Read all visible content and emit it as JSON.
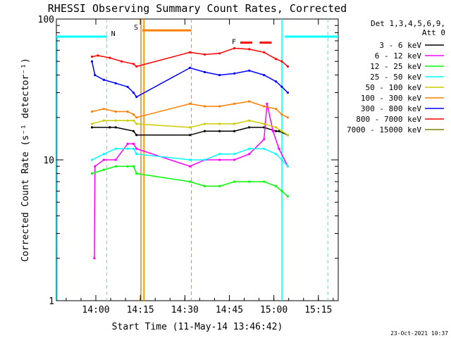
{
  "chart_data": {
    "type": "line",
    "title": "RHESSI Observing Summary Count Rates, Corrected",
    "xlabel": "Start Time (11-May-14 13:46:42)",
    "ylabel": "Corrected Count Rate (s⁻¹ detector⁻¹)",
    "x_unit": "minutes after 13:46:42",
    "xlim": [
      0,
      95
    ],
    "ylim": [
      1,
      100
    ],
    "yscale": "log",
    "x_ticks": [
      {
        "v": 13.3,
        "label": "14:00"
      },
      {
        "v": 28.3,
        "label": "14:15"
      },
      {
        "v": 43.3,
        "label": "14:30"
      },
      {
        "v": 58.3,
        "label": "14:45"
      },
      {
        "v": 73.3,
        "label": "15:00"
      },
      {
        "v": 88.3,
        "label": "15:15"
      }
    ],
    "y_ticks": [
      {
        "v": 1,
        "label": "1"
      },
      {
        "v": 10,
        "label": "10"
      },
      {
        "v": 100,
        "label": "100"
      }
    ],
    "legend_title": "Det 1,3,4,5,6,9,",
    "legend_subtitle": "Att 0",
    "legend_position": "right",
    "series": [
      {
        "name": "3 - 6 keV",
        "color": "#000000",
        "data": [
          [
            12,
            17
          ],
          [
            18,
            17
          ],
          [
            20,
            17
          ],
          [
            26,
            16
          ],
          [
            27,
            15
          ],
          [
            45,
            15
          ],
          [
            50,
            16
          ],
          [
            55,
            16
          ],
          [
            60,
            16
          ],
          [
            65,
            17
          ],
          [
            70,
            17
          ],
          [
            74,
            16
          ],
          [
            75,
            16
          ],
          [
            78,
            15
          ]
        ]
      },
      {
        "name": "6 - 12 keV",
        "color": "#ff00ff",
        "data": [
          [
            12.8,
            2
          ],
          [
            13,
            9
          ],
          [
            16,
            10
          ],
          [
            20,
            10
          ],
          [
            24,
            13
          ],
          [
            26,
            13
          ],
          [
            27,
            12
          ],
          [
            45,
            9
          ],
          [
            50,
            10
          ],
          [
            55,
            10
          ],
          [
            60,
            10
          ],
          [
            65,
            11
          ],
          [
            70,
            14
          ],
          [
            71,
            25
          ],
          [
            73,
            16
          ],
          [
            75,
            12
          ],
          [
            78,
            9
          ]
        ]
      },
      {
        "name": "12 - 25 keV",
        "color": "#00ff00",
        "data": [
          [
            12,
            8
          ],
          [
            16,
            8.5
          ],
          [
            20,
            9
          ],
          [
            24,
            9
          ],
          [
            26,
            9
          ],
          [
            27,
            8
          ],
          [
            45,
            7
          ],
          [
            50,
            6.5
          ],
          [
            55,
            6.5
          ],
          [
            60,
            7
          ],
          [
            65,
            7
          ],
          [
            70,
            7
          ],
          [
            74,
            6.5
          ],
          [
            76,
            6
          ],
          [
            78,
            5.5
          ]
        ]
      },
      {
        "name": "25 - 50 keV",
        "color": "#00ffff",
        "data": [
          [
            12,
            10
          ],
          [
            16,
            11
          ],
          [
            20,
            12
          ],
          [
            24,
            12
          ],
          [
            26,
            12
          ],
          [
            27,
            11
          ],
          [
            45,
            10
          ],
          [
            50,
            10
          ],
          [
            55,
            11
          ],
          [
            60,
            11
          ],
          [
            65,
            12
          ],
          [
            70,
            12
          ],
          [
            74,
            11
          ],
          [
            76,
            10
          ],
          [
            78,
            9
          ]
        ]
      },
      {
        "name": "50 - 100 keV",
        "color": "#cccc00",
        "data": [
          [
            12,
            18
          ],
          [
            16,
            19
          ],
          [
            20,
            19
          ],
          [
            24,
            19
          ],
          [
            26,
            19
          ],
          [
            27,
            18
          ],
          [
            45,
            17
          ],
          [
            50,
            18
          ],
          [
            55,
            18
          ],
          [
            60,
            18
          ],
          [
            65,
            19
          ],
          [
            70,
            18
          ],
          [
            74,
            17
          ],
          [
            76,
            16
          ],
          [
            78,
            15
          ]
        ]
      },
      {
        "name": "100 - 300 keV",
        "color": "#ff8000",
        "data": [
          [
            12,
            22
          ],
          [
            16,
            23
          ],
          [
            20,
            22
          ],
          [
            24,
            22
          ],
          [
            26,
            21
          ],
          [
            27,
            20
          ],
          [
            45,
            25
          ],
          [
            50,
            24
          ],
          [
            55,
            24
          ],
          [
            60,
            25
          ],
          [
            65,
            26
          ],
          [
            70,
            24
          ],
          [
            74,
            23
          ],
          [
            76,
            21
          ],
          [
            78,
            20
          ]
        ]
      },
      {
        "name": "300 - 800 keV",
        "color": "#0000ff",
        "data": [
          [
            12,
            50
          ],
          [
            13,
            40
          ],
          [
            16,
            37
          ],
          [
            20,
            35
          ],
          [
            24,
            33
          ],
          [
            26,
            30
          ],
          [
            27,
            28
          ],
          [
            45,
            45
          ],
          [
            50,
            42
          ],
          [
            55,
            40
          ],
          [
            60,
            41
          ],
          [
            65,
            43
          ],
          [
            70,
            40
          ],
          [
            74,
            36
          ],
          [
            76,
            33
          ],
          [
            78,
            30
          ]
        ]
      },
      {
        "name": "800 - 7000 keV",
        "color": "#ff0000",
        "data": [
          [
            12,
            54
          ],
          [
            14,
            55
          ],
          [
            18,
            53
          ],
          [
            22,
            50
          ],
          [
            26,
            48
          ],
          [
            27,
            46
          ],
          [
            45,
            58
          ],
          [
            50,
            56
          ],
          [
            55,
            57
          ],
          [
            60,
            62
          ],
          [
            65,
            61
          ],
          [
            70,
            58
          ],
          [
            74,
            52
          ],
          [
            76,
            50
          ],
          [
            78,
            46
          ]
        ]
      },
      {
        "name": "7000 - 15000 keV",
        "color": "#808000",
        "data": []
      }
    ],
    "annotations": {
      "night": {
        "label": "N",
        "color": "#00ffff",
        "level": 75,
        "spans": [
          [
            0,
            17
          ],
          [
            77,
            95
          ]
        ],
        "markers": [
          17,
          76,
          91.5
        ]
      },
      "saa": {
        "label": "S",
        "color": "#ff8000",
        "level": 83,
        "spans": [
          [
            29,
            45.5
          ]
        ],
        "markers": [
          28.5,
          29.5,
          45.5
        ]
      },
      "flare": {
        "label": "F",
        "color": "#ff0000",
        "level": 68,
        "spans": [
          [
            62,
            66
          ],
          [
            68.5,
            72.5
          ]
        ]
      }
    }
  },
  "footer_date": "23-Oct-2021 10:37"
}
